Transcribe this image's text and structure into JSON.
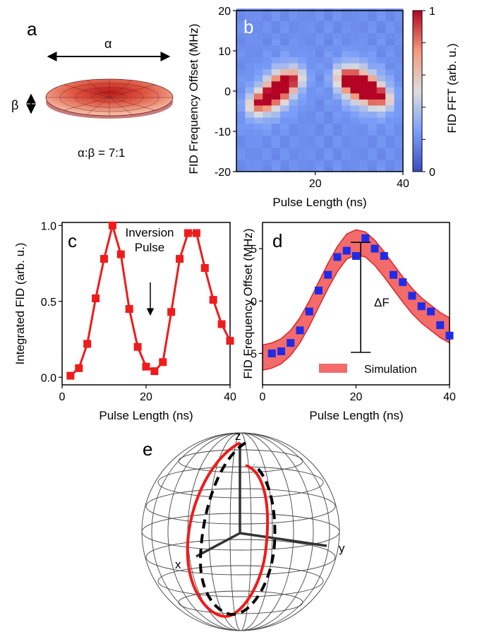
{
  "panel_a": {
    "label": "a",
    "alpha_label": "α",
    "beta_label": "β",
    "ratio_label": "α:β = 7:1"
  },
  "panel_e": {
    "label": "e",
    "axis_x": "x",
    "axis_y": "y",
    "axis_z": "z"
  },
  "colors": {
    "red": "#ee1c1c",
    "blue": "#1f2be8",
    "band": "#f36b6b",
    "band_edge": "#e02626"
  },
  "chart_data": [
    {
      "id": "b",
      "panel_label": "b",
      "type": "heatmap",
      "xlabel": "Pulse Length (ns)",
      "ylabel": "FID Frequency Offset (MHz)",
      "colorbar_label": "FID FFT (arb. u.)",
      "xlim": [
        2,
        40
      ],
      "ylim": [
        -20,
        20
      ],
      "xticks": [
        20,
        40
      ],
      "yticks": [
        20,
        10,
        0,
        -10,
        -20
      ],
      "colorbar_ticks": [
        0,
        1
      ],
      "colormap": "coolwarm",
      "peaks": [
        {
          "x": 6,
          "y": -3.5,
          "v": 0.3
        },
        {
          "x": 8,
          "y": -2.5,
          "v": 0.5
        },
        {
          "x": 10,
          "y": -1,
          "v": 0.65
        },
        {
          "x": 12,
          "y": 1,
          "v": 0.95
        },
        {
          "x": 14,
          "y": 2.5,
          "v": 0.5
        },
        {
          "x": 16,
          "y": 3.5,
          "v": 0.25
        },
        {
          "x": 26,
          "y": 3.5,
          "v": 0.3
        },
        {
          "x": 28,
          "y": 2.5,
          "v": 0.8
        },
        {
          "x": 30,
          "y": 1.5,
          "v": 0.9
        },
        {
          "x": 32,
          "y": 0.5,
          "v": 0.8
        },
        {
          "x": 34,
          "y": -1,
          "v": 0.55
        },
        {
          "x": 36,
          "y": -2,
          "v": 0.3
        }
      ]
    },
    {
      "id": "c",
      "panel_label": "c",
      "type": "line",
      "xlabel": "Pulse Length (ns)",
      "ylabel": "Integrated FID (arb. u.)",
      "xlim": [
        0,
        40
      ],
      "ylim": [
        -0.05,
        1.02
      ],
      "xticks": [
        0,
        20,
        40
      ],
      "yticks": [
        0.0,
        0.5,
        1.0
      ],
      "ytick_labels": [
        "0.0",
        "0.5",
        "1.0"
      ],
      "annotation": [
        "Inversion",
        "Pulse"
      ],
      "series": [
        {
          "x": [
            2,
            4,
            6,
            8,
            10,
            12,
            14,
            16,
            18,
            20,
            22,
            24,
            26,
            28,
            30,
            32,
            34,
            36,
            38,
            40
          ],
          "y": [
            0.01,
            0.06,
            0.22,
            0.52,
            0.78,
            1.0,
            0.81,
            0.45,
            0.2,
            0.07,
            0.04,
            0.1,
            0.43,
            0.78,
            0.95,
            0.95,
            0.72,
            0.51,
            0.35,
            0.24
          ]
        }
      ]
    },
    {
      "id": "d",
      "panel_label": "d",
      "type": "scatter",
      "xlabel": "Pulse Length (ns)",
      "ylabel": "FID Frequency Offset (MHz)",
      "xlim": [
        0,
        40
      ],
      "ylim": [
        -8,
        7.5
      ],
      "xticks": [
        0,
        20,
        40
      ],
      "yticks": [
        5,
        0,
        -5
      ],
      "annotation": "ΔF",
      "legend": "Simulation",
      "series": [
        {
          "x": [
            2,
            4,
            6,
            8,
            10,
            12,
            14,
            16,
            18,
            20,
            22,
            24,
            26,
            28,
            30,
            32,
            34,
            36,
            38,
            40
          ],
          "y": [
            -5.0,
            -4.8,
            -4.0,
            -2.8,
            -1.0,
            1.0,
            2.5,
            4.2,
            4.8,
            4.3,
            6.0,
            5.0,
            4.3,
            2.5,
            1.8,
            0.5,
            -0.5,
            -1.0,
            -2.3,
            -3.3
          ]
        }
      ],
      "band": {
        "x": [
          0,
          2,
          4,
          6,
          8,
          10,
          12,
          14,
          16,
          18,
          20,
          22,
          24,
          26,
          28,
          30,
          32,
          34,
          36,
          38,
          40
        ],
        "center": [
          -5.4,
          -5.2,
          -4.8,
          -4.0,
          -2.8,
          -1.2,
          0.6,
          2.4,
          4.0,
          5.2,
          5.6,
          5.4,
          4.6,
          3.5,
          2.3,
          1.1,
          0.0,
          -0.9,
          -1.6,
          -2.3,
          -2.8
        ]
      }
    }
  ]
}
